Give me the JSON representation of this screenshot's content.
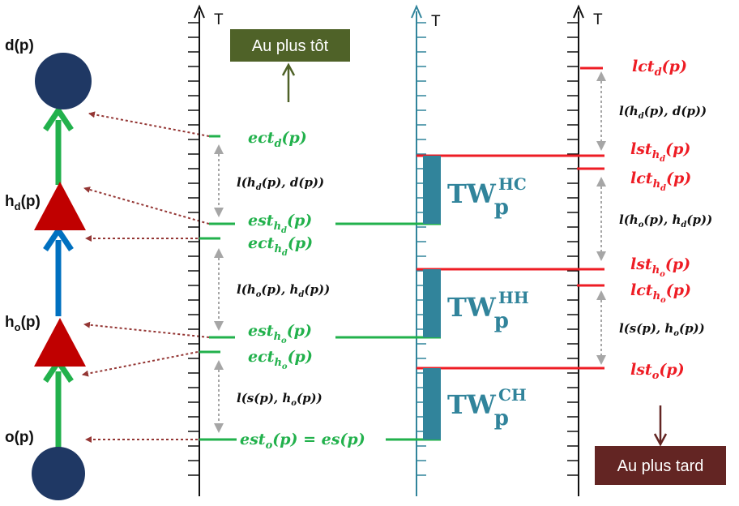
{
  "nodes": {
    "d": "d(p)",
    "h_d_main": "h",
    "h_d_sub": "d",
    "h_d_tail": "(p)",
    "h_o_main": "h",
    "h_o_sub": "o",
    "h_o_tail": "(p)",
    "o": "o(p)"
  },
  "axes": {
    "label": "T"
  },
  "boxes": {
    "earliest": "Au plus tôt",
    "latest": "Au plus tard"
  },
  "left_labels": {
    "ect_d": {
      "base": "ect",
      "sub": "d",
      "tail": "(p)"
    },
    "est_hd": {
      "base": "est",
      "sub": "h",
      "subsub": "d",
      "tail": "(p)"
    },
    "ect_hd": {
      "base": "ect",
      "sub": "h",
      "subsub": "d",
      "tail": "(p)"
    },
    "est_ho": {
      "base": "est",
      "sub": "h",
      "subsub": "o",
      "tail": "(p)"
    },
    "ect_ho": {
      "base": "ect",
      "sub": "h",
      "subsub": "o",
      "tail": "(p)"
    },
    "est_o": {
      "base": "est",
      "sub": "o",
      "tail": "(p) = es(p)"
    }
  },
  "right_labels": {
    "lct_d": {
      "base": "lct",
      "sub": "d",
      "tail": "(p)"
    },
    "lst_hd": {
      "base": "lst",
      "sub": "h",
      "subsub": "d",
      "tail": "(p)"
    },
    "lct_hd": {
      "base": "lct",
      "sub": "h",
      "subsub": "d",
      "tail": "(p)"
    },
    "lst_ho": {
      "base": "lst",
      "sub": "h",
      "subsub": "o",
      "tail": "(p)"
    },
    "lct_ho": {
      "base": "lct",
      "sub": "h",
      "subsub": "o",
      "tail": "(p)"
    },
    "lst_o": {
      "base": "lst",
      "sub": "o",
      "tail": "(p)"
    }
  },
  "durations": {
    "hd_d": {
      "a": "l(",
      "b": "h",
      "bs": "d",
      "c": "(p), ",
      "d": "d",
      "e": "(p))"
    },
    "ho_hd": {
      "a": "l(",
      "b": "h",
      "bs": "o",
      "c": "(p), ",
      "d": "h",
      "ds": "d",
      "e": "(p))"
    },
    "s_ho": {
      "a": "l(",
      "b": "s",
      "c": "(p), ",
      "d": "h",
      "ds": "o",
      "e": "(p))"
    }
  },
  "windows": {
    "hc": {
      "base": "TW",
      "sub": "p",
      "sup": "HC"
    },
    "hh": {
      "base": "TW",
      "sub": "p",
      "sup": "HH"
    },
    "ch": {
      "base": "TW",
      "sub": "p",
      "sup": "CH"
    }
  },
  "colors": {
    "green": "#22b14c",
    "red": "#ee1c24",
    "blue": "#0070c0",
    "node": "#1f3864",
    "triangle": "#c00000",
    "teal": "#31849b",
    "olive": "#4f6228",
    "maroon": "#632523"
  }
}
